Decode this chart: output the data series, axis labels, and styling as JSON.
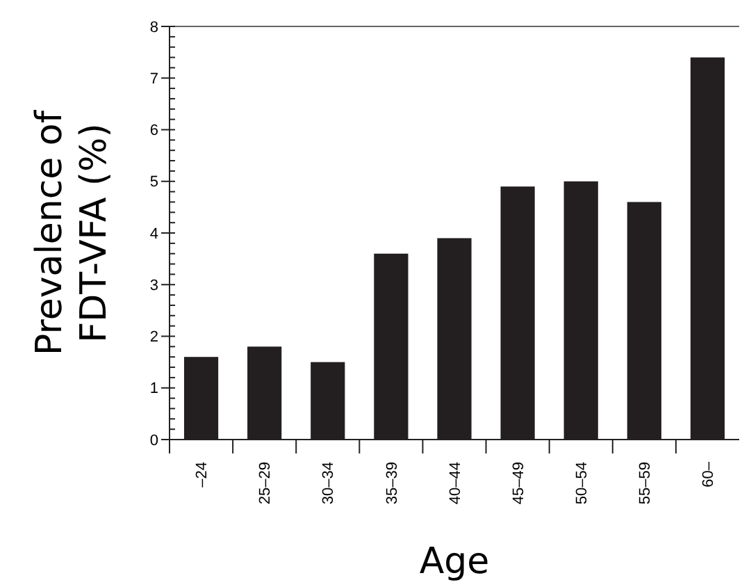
{
  "chart_data": {
    "type": "bar",
    "xlabel": "Age",
    "ylabel": "Prevalence of\nFDT-VFA (%)",
    "categories": [
      "–24",
      "25–29",
      "30–34",
      "35–39",
      "40–44",
      "45–49",
      "50–54",
      "55–59",
      "60–"
    ],
    "values": [
      1.6,
      1.8,
      1.5,
      3.6,
      3.9,
      4.9,
      5.0,
      4.6,
      7.4
    ],
    "color": "#231f20",
    "ylim": [
      0,
      8
    ],
    "yticks": [
      0,
      1,
      2,
      3,
      4,
      5,
      6,
      7,
      8
    ],
    "grid": false
  }
}
